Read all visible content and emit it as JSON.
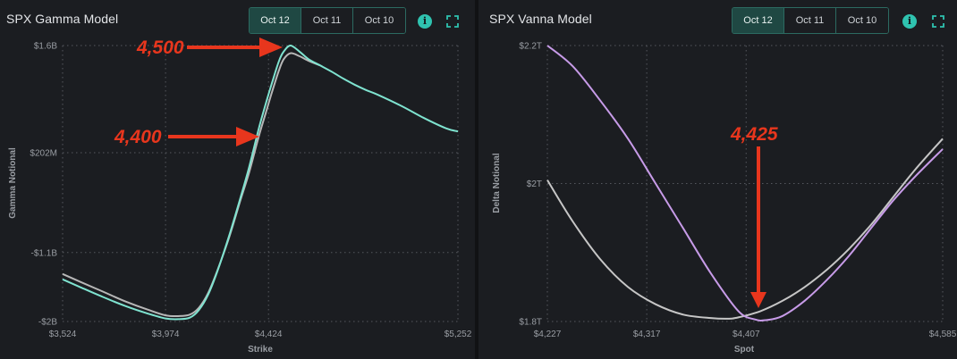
{
  "panels": [
    {
      "id": "gamma",
      "title": "SPX Gamma Model",
      "tabs": [
        {
          "label": "Oct 12",
          "active": true
        },
        {
          "label": "Oct 11",
          "active": false
        },
        {
          "label": "Oct 10",
          "active": false
        }
      ],
      "info_icon": "info-icon",
      "expand_icon": "expand-icon"
    },
    {
      "id": "vanna",
      "title": "SPX Vanna Model",
      "tabs": [
        {
          "label": "Oct 12",
          "active": true
        },
        {
          "label": "Oct 11",
          "active": false
        },
        {
          "label": "Oct 10",
          "active": false
        }
      ],
      "info_icon": "info-icon",
      "expand_icon": "expand-icon"
    }
  ],
  "colors": {
    "background": "#1b1d21",
    "accent": "#2fc3b0",
    "annotation": "#e8361d",
    "gamma_current": "#7fe3d0",
    "gamma_prior": "#b7b7b7",
    "vanna_current": "#c79be8",
    "vanna_prior": "#c6c6c6"
  },
  "chart_data": [
    {
      "type": "line",
      "xlabel": "Strike",
      "ylabel": "Gamma Notional",
      "xlim": [
        3524,
        5252
      ],
      "ylim": [
        -2.0,
        1.6
      ],
      "x_tick_values": [
        3524,
        3974,
        4424,
        5252
      ],
      "x_tick_labels": [
        "$3,524",
        "$3,974",
        "$4,424",
        "$5,252"
      ],
      "y_tick_values": [
        1.6,
        0.202,
        -1.1,
        -2.0
      ],
      "y_tick_labels": [
        "$1.6B",
        "$202M",
        "-$1.1B",
        "-$2B"
      ],
      "grid": true,
      "series": [
        {
          "color": "#7fe3d0",
          "x": [
            3524,
            3600,
            3700,
            3800,
            3900,
            3974,
            4030,
            4080,
            4120,
            4160,
            4200,
            4250,
            4300,
            4340,
            4380,
            4410,
            4440,
            4470,
            4490,
            4520,
            4560,
            4600,
            4650,
            4700,
            4750,
            4800,
            4850,
            4900,
            5000,
            5100,
            5200,
            5252
          ],
          "y": [
            -1.45,
            -1.55,
            -1.68,
            -1.8,
            -1.9,
            -1.96,
            -1.97,
            -1.95,
            -1.85,
            -1.65,
            -1.35,
            -0.9,
            -0.4,
            0.02,
            0.5,
            0.82,
            1.12,
            1.4,
            1.52,
            1.6,
            1.52,
            1.42,
            1.34,
            1.26,
            1.17,
            1.09,
            1.02,
            0.96,
            0.82,
            0.66,
            0.52,
            0.48
          ]
        },
        {
          "color": "#b7b7b7",
          "x": [
            3524,
            3600,
            3700,
            3800,
            3900,
            3974,
            4030,
            4080,
            4120,
            4160,
            4200,
            4250,
            4300,
            4340,
            4380,
            4410,
            4440,
            4470,
            4490,
            4520,
            4560,
            4600,
            4650
          ],
          "y": [
            -1.38,
            -1.48,
            -1.61,
            -1.74,
            -1.85,
            -1.92,
            -1.93,
            -1.91,
            -1.82,
            -1.63,
            -1.34,
            -0.92,
            -0.43,
            -0.05,
            0.4,
            0.7,
            1.0,
            1.28,
            1.42,
            1.5,
            1.46,
            1.4,
            1.34
          ]
        }
      ],
      "annotations": [
        {
          "text": "4,500"
        },
        {
          "text": "4,400"
        }
      ]
    },
    {
      "type": "line",
      "xlabel": "Spot",
      "ylabel": "Delta Notional",
      "xlim": [
        4227,
        4585
      ],
      "ylim": [
        1.8,
        2.2
      ],
      "x_tick_values": [
        4227,
        4317,
        4407,
        4585
      ],
      "x_tick_labels": [
        "$4,227",
        "$4,317",
        "$4,407",
        "$4,585"
      ],
      "y_tick_values": [
        2.2,
        2.0,
        1.8
      ],
      "y_tick_labels": [
        "$2.2T",
        "$2T",
        "$1.8T"
      ],
      "grid": true,
      "series": [
        {
          "color": "#c79be8",
          "x": [
            4227,
            4250,
            4275,
            4300,
            4325,
            4350,
            4375,
            4400,
            4415,
            4425,
            4440,
            4460,
            4480,
            4500,
            4520,
            4540,
            4560,
            4585
          ],
          "y": [
            2.2,
            2.17,
            2.12,
            2.065,
            2.0,
            1.935,
            1.87,
            1.815,
            1.803,
            1.802,
            1.808,
            1.83,
            1.86,
            1.895,
            1.935,
            1.975,
            2.01,
            2.05
          ]
        },
        {
          "color": "#c6c6c6",
          "x": [
            4227,
            4250,
            4275,
            4300,
            4325,
            4350,
            4375,
            4390,
            4400,
            4420,
            4440,
            4460,
            4480,
            4500,
            4520,
            4540,
            4560,
            4585
          ],
          "y": [
            2.005,
            1.945,
            1.89,
            1.85,
            1.825,
            1.81,
            1.805,
            1.804,
            1.806,
            1.815,
            1.83,
            1.85,
            1.875,
            1.905,
            1.94,
            1.98,
            2.02,
            2.065
          ]
        }
      ],
      "annotations": [
        {
          "text": "4,425"
        }
      ]
    }
  ]
}
